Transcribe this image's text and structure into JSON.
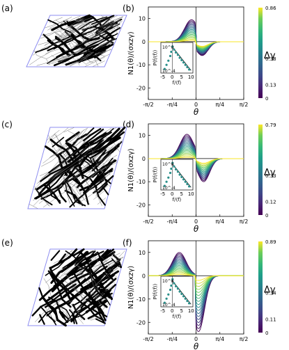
{
  "panel_labels": {
    "a": "(a)",
    "b": "(b)",
    "c": "(c)",
    "d": "(d)",
    "e": "(e)",
    "f": "(f)"
  },
  "axis_labels": {
    "ylabel": "N1(θ)/(σxzγ)",
    "xlabel": "θ",
    "inset_ylabel": "P(f/⟨f⟩)",
    "inset_xlabel": "f/⟨f⟩",
    "colorbar_label": "Δγ"
  },
  "colors": {
    "network_line": "#000000",
    "cell_border": "#8d8df0",
    "colormap": "viridis"
  },
  "chart_data": [
    {
      "type": "line",
      "panel": "b",
      "xlabel": "θ",
      "ylabel": "N1(θ)/(σxzγ)",
      "x_ticks": [
        "-π/2",
        "-π/4",
        "0",
        "π/4",
        "π/2"
      ],
      "y_ticks": [
        "10",
        "0",
        "-10",
        "-20"
      ],
      "xlim": [
        -1.5708,
        1.5708
      ],
      "ylim": [
        -25,
        15
      ],
      "colorbar": {
        "label": "Δγ",
        "ticks": [
          "0.86",
          "0.38",
          "0.13",
          "0"
        ],
        "range": [
          0,
          0.86
        ]
      },
      "series_family": {
        "peak_pos": [
          0.5,
          9.5
        ],
        "peak_neg": [
          -2,
          -6
        ],
        "pos_center": -0.15,
        "neg_center": 0.2,
        "count": 18
      },
      "inset": {
        "type": "scatter",
        "xlabel": "f/⟨f⟩",
        "ylabel": "P(f/⟨f⟩)",
        "x_ticks": [
          "-5",
          "0",
          "5",
          "10"
        ],
        "y_ticks": [
          "10^0",
          "10^-4"
        ],
        "peak": 0.5
      }
    },
    {
      "type": "line",
      "panel": "d",
      "xlabel": "θ",
      "ylabel": "N1(θ)/(σxzγ)",
      "x_ticks": [
        "-π/2",
        "-π/4",
        "0",
        "π/4",
        "π/2"
      ],
      "y_ticks": [
        "10",
        "0",
        "-10",
        "-20"
      ],
      "xlim": [
        -1.5708,
        1.5708
      ],
      "ylim": [
        -25,
        15
      ],
      "colorbar": {
        "label": "Δγ",
        "ticks": [
          "0.79",
          "0.33",
          "0.12",
          "0"
        ],
        "range": [
          0,
          0.79
        ]
      },
      "series_family": {
        "peak_pos": [
          0.5,
          10.5
        ],
        "peak_neg": [
          -2,
          -10
        ],
        "pos_center": -0.3,
        "neg_center": 0.25,
        "count": 18
      },
      "inset": {
        "type": "scatter",
        "xlabel": "f/⟨f⟩",
        "ylabel": "P(f/⟨f⟩)",
        "x_ticks": [
          "-5",
          "0",
          "5",
          "10"
        ],
        "y_ticks": [
          "10^0",
          "10^-4"
        ],
        "peak": 0.6
      }
    },
    {
      "type": "line",
      "panel": "f",
      "xlabel": "θ",
      "ylabel": "N1(θ)/(σxzγ)",
      "x_ticks": [
        "-π/2",
        "-π/4",
        "0",
        "π/4",
        "π/2"
      ],
      "y_ticks": [
        "10",
        "0",
        "-10",
        "-20"
      ],
      "xlim": [
        -1.5708,
        1.5708
      ],
      "ylim": [
        -25,
        15
      ],
      "colorbar": {
        "label": "Δγ",
        "ticks": [
          "0.89",
          "0.34",
          "0.11",
          "0"
        ],
        "range": [
          0,
          0.89
        ]
      },
      "series_family": {
        "peak_pos": [
          0.5,
          10
        ],
        "peak_neg": [
          -2,
          -24
        ],
        "pos_center": -0.55,
        "neg_center": 0.08,
        "count": 18
      },
      "inset": {
        "type": "scatter",
        "xlabel": "f/⟨f⟩",
        "ylabel": "P(f/⟨f⟩)",
        "x_ticks": [
          "-5",
          "0",
          "5",
          "10"
        ],
        "y_ticks": [
          "10^0",
          "10^-4"
        ],
        "peak": 0.7
      }
    }
  ]
}
